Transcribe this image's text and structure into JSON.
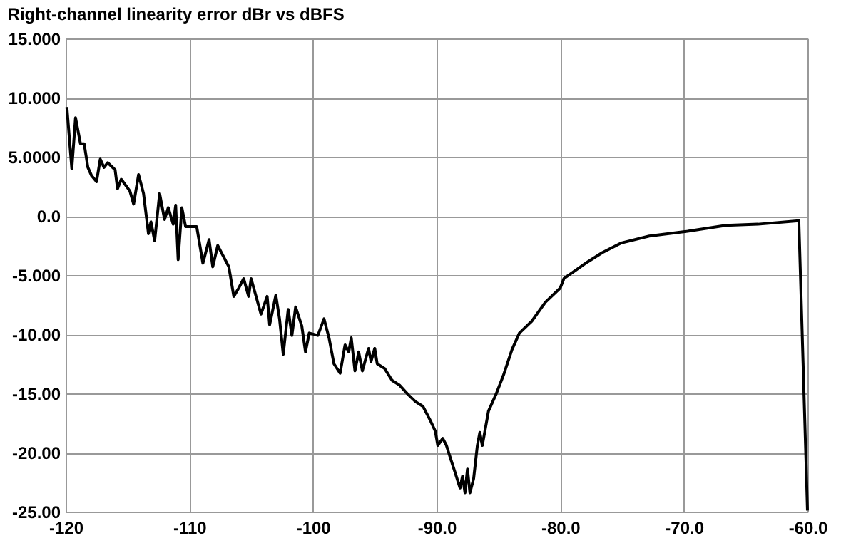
{
  "chart_data": {
    "type": "line",
    "title": "Right-channel linearity error  dBr vs dBFS",
    "x": [
      -119.9,
      -119.5,
      -119.2,
      -118.8,
      -118.5,
      -118.2,
      -117.9,
      -117.5,
      -117.2,
      -116.9,
      -116.6,
      -116.0,
      -115.8,
      -115.5,
      -114.8,
      -114.5,
      -114.1,
      -113.7,
      -113.3,
      -113.1,
      -112.8,
      -112.4,
      -112.0,
      -111.7,
      -111.3,
      -111.1,
      -110.9,
      -110.6,
      -110.3,
      -109.4,
      -108.9,
      -108.4,
      -108.1,
      -107.7,
      -106.8,
      -106.4,
      -106.0,
      -105.6,
      -105.2,
      -105.0,
      -104.2,
      -103.7,
      -103.5,
      -103.0,
      -102.7,
      -102.4,
      -102.0,
      -101.7,
      -101.4,
      -100.9,
      -100.6,
      -100.3,
      -99.6,
      -99.1,
      -98.7,
      -98.3,
      -97.8,
      -97.4,
      -97.1,
      -96.9,
      -96.6,
      -96.3,
      -96.0,
      -95.5,
      -95.3,
      -95.0,
      -94.8,
      -94.2,
      -93.6,
      -93.0,
      -92.3,
      -91.7,
      -91.1,
      -90.5,
      -90.1,
      -89.9,
      -89.5,
      -89.2,
      -88.9,
      -88.5,
      -88.1,
      -87.9,
      -87.7,
      -87.5,
      -87.3,
      -87.0,
      -86.7,
      -86.5,
      -86.3,
      -85.8,
      -85.2,
      -84.6,
      -83.9,
      -83.3,
      -82.3,
      -81.2,
      -80.0,
      -79.7,
      -77.8,
      -76.6,
      -75.1,
      -72.8,
      -69.7,
      -66.6,
      -64.0,
      -60.7,
      -60.0
    ],
    "series": [
      {
        "color": "#000000",
        "values": [
          9.2,
          4.0,
          8.3,
          6.1,
          6.1,
          4.1,
          3.4,
          2.9,
          4.8,
          4.1,
          4.5,
          3.9,
          2.3,
          3.1,
          2.1,
          1.0,
          3.5,
          1.9,
          -1.5,
          -0.5,
          -2.1,
          1.9,
          -0.3,
          0.7,
          -0.7,
          0.9,
          -3.7,
          0.7,
          -0.9,
          -0.9,
          -4.0,
          -2.0,
          -4.3,
          -2.5,
          -4.3,
          -6.8,
          -6.1,
          -5.3,
          -6.8,
          -5.3,
          -8.3,
          -6.8,
          -9.2,
          -6.7,
          -8.7,
          -11.7,
          -7.9,
          -10.1,
          -7.7,
          -9.3,
          -11.5,
          -9.9,
          -10.1,
          -8.7,
          -10.3,
          -12.5,
          -13.3,
          -10.9,
          -11.5,
          -10.3,
          -13.1,
          -11.5,
          -13.1,
          -11.2,
          -12.3,
          -11.2,
          -12.5,
          -12.9,
          -13.9,
          -14.3,
          -15.1,
          -15.7,
          -16.1,
          -17.3,
          -18.2,
          -19.4,
          -18.8,
          -19.4,
          -20.4,
          -21.7,
          -23.0,
          -22.0,
          -23.4,
          -21.4,
          -23.4,
          -22.2,
          -19.4,
          -18.3,
          -19.4,
          -16.5,
          -15.1,
          -13.5,
          -11.3,
          -9.9,
          -8.9,
          -7.3,
          -6.1,
          -5.3,
          -3.9,
          -3.1,
          -2.3,
          -1.7,
          -1.3,
          -0.8,
          -0.7,
          -0.4,
          -24.9
        ]
      }
    ],
    "xlim": [
      -120,
      -60
    ],
    "xticks": [
      -120,
      -110,
      -100,
      {
        "value": -90,
        "label": "-90.0"
      },
      {
        "value": -80,
        "label": "-80.0"
      },
      {
        "value": -70,
        "label": "-70.0"
      },
      {
        "value": -60,
        "label": "-60.0"
      }
    ],
    "ylim": [
      -25,
      15
    ],
    "yticks": [
      {
        "value": 15,
        "label": "15.000"
      },
      {
        "value": 10,
        "label": "10.000"
      },
      {
        "value": 5,
        "label": "5.0000"
      },
      {
        "value": 0,
        "label": "0.0"
      },
      {
        "value": -5,
        "label": "-5.000"
      },
      {
        "value": -10,
        "label": "-10.00"
      },
      {
        "value": -15,
        "label": "-15.00"
      },
      {
        "value": -20,
        "label": "-20.00"
      },
      {
        "value": -25,
        "label": "-25.00"
      }
    ],
    "grid": true,
    "marker": "none",
    "line_style": "solid"
  }
}
